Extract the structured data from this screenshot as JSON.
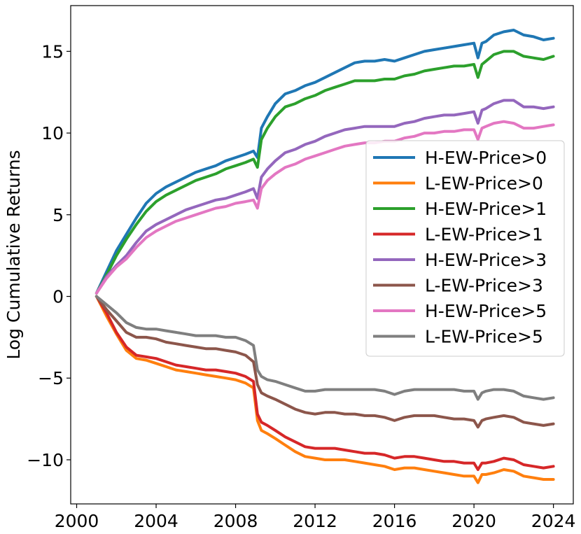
{
  "chart_data": {
    "type": "line",
    "title": "",
    "xlabel": "",
    "ylabel": "Log Cumulative Returns",
    "xlim": [
      1999.7,
      2025.0
    ],
    "ylim": [
      -12.7,
      17.8
    ],
    "x_ticks": [
      2000,
      2004,
      2008,
      2012,
      2016,
      2020,
      2024
    ],
    "x_tick_labels": [
      "2000",
      "2004",
      "2008",
      "2012",
      "2016",
      "2020",
      "2024"
    ],
    "y_ticks": [
      -10,
      -5,
      0,
      5,
      10,
      15
    ],
    "y_tick_labels": [
      "−10",
      "−5",
      "0",
      "5",
      "10",
      "15"
    ],
    "grid": false,
    "legend_position": "center-right",
    "x": [
      2001.0,
      2001.5,
      2002.0,
      2002.5,
      2003.0,
      2003.5,
      2004.0,
      2004.5,
      2005.0,
      2005.5,
      2006.0,
      2006.5,
      2007.0,
      2007.5,
      2008.0,
      2008.5,
      2008.9,
      2009.1,
      2009.3,
      2009.6,
      2010.0,
      2010.5,
      2011.0,
      2011.5,
      2012.0,
      2012.5,
      2013.0,
      2013.5,
      2014.0,
      2014.5,
      2015.0,
      2015.5,
      2016.0,
      2016.5,
      2017.0,
      2017.5,
      2018.0,
      2018.5,
      2019.0,
      2019.5,
      2020.0,
      2020.2,
      2020.4,
      2020.6,
      2021.0,
      2021.5,
      2022.0,
      2022.5,
      2023.0,
      2023.5,
      2024.0
    ],
    "series": [
      {
        "name": "H-EW-Price>0",
        "color": "#1f77b4",
        "values": [
          0.2,
          1.5,
          2.8,
          3.8,
          4.8,
          5.7,
          6.3,
          6.7,
          7.0,
          7.3,
          7.6,
          7.8,
          8.0,
          8.3,
          8.5,
          8.7,
          8.9,
          8.5,
          10.3,
          11.0,
          11.8,
          12.4,
          12.6,
          12.9,
          13.1,
          13.4,
          13.7,
          14.0,
          14.3,
          14.4,
          14.4,
          14.5,
          14.4,
          14.6,
          14.8,
          15.0,
          15.1,
          15.2,
          15.3,
          15.4,
          15.5,
          14.6,
          15.5,
          15.6,
          16.0,
          16.2,
          16.3,
          16.0,
          15.9,
          15.7,
          15.8
        ]
      },
      {
        "name": "L-EW-Price>0",
        "color": "#ff7f0e",
        "values": [
          0.0,
          -1.2,
          -2.3,
          -3.3,
          -3.8,
          -3.9,
          -4.1,
          -4.3,
          -4.5,
          -4.6,
          -4.7,
          -4.8,
          -4.9,
          -5.0,
          -5.1,
          -5.3,
          -5.6,
          -7.6,
          -8.2,
          -8.4,
          -8.7,
          -9.1,
          -9.5,
          -9.8,
          -9.9,
          -10.0,
          -10.0,
          -10.0,
          -10.1,
          -10.2,
          -10.3,
          -10.4,
          -10.6,
          -10.5,
          -10.5,
          -10.6,
          -10.7,
          -10.8,
          -10.9,
          -11.0,
          -11.0,
          -11.4,
          -10.9,
          -10.9,
          -10.8,
          -10.6,
          -10.7,
          -11.0,
          -11.1,
          -11.2,
          -11.2
        ]
      },
      {
        "name": "H-EW-Price>1",
        "color": "#2ca02c",
        "values": [
          0.2,
          1.3,
          2.5,
          3.5,
          4.4,
          5.2,
          5.8,
          6.2,
          6.5,
          6.8,
          7.1,
          7.3,
          7.5,
          7.8,
          8.0,
          8.2,
          8.4,
          7.9,
          9.6,
          10.3,
          11.0,
          11.6,
          11.8,
          12.1,
          12.3,
          12.6,
          12.8,
          13.0,
          13.2,
          13.2,
          13.2,
          13.3,
          13.3,
          13.5,
          13.6,
          13.8,
          13.9,
          14.0,
          14.1,
          14.1,
          14.2,
          13.4,
          14.2,
          14.4,
          14.8,
          15.0,
          15.0,
          14.7,
          14.6,
          14.5,
          14.7
        ]
      },
      {
        "name": "L-EW-Price>1",
        "color": "#d62728",
        "values": [
          0.0,
          -1.0,
          -2.2,
          -3.1,
          -3.6,
          -3.7,
          -3.8,
          -4.0,
          -4.2,
          -4.3,
          -4.4,
          -4.5,
          -4.5,
          -4.6,
          -4.7,
          -4.9,
          -5.2,
          -7.2,
          -7.7,
          -7.9,
          -8.2,
          -8.6,
          -8.9,
          -9.2,
          -9.3,
          -9.3,
          -9.3,
          -9.4,
          -9.5,
          -9.6,
          -9.6,
          -9.7,
          -9.9,
          -9.8,
          -9.8,
          -9.9,
          -10.0,
          -10.1,
          -10.1,
          -10.2,
          -10.2,
          -10.6,
          -10.2,
          -10.2,
          -10.1,
          -9.9,
          -10.0,
          -10.3,
          -10.4,
          -10.5,
          -10.4
        ]
      },
      {
        "name": "H-EW-Price>3",
        "color": "#9467bd",
        "values": [
          0.2,
          1.2,
          1.9,
          2.5,
          3.3,
          4.0,
          4.4,
          4.7,
          5.0,
          5.3,
          5.5,
          5.7,
          5.9,
          6.0,
          6.2,
          6.4,
          6.6,
          6.0,
          7.3,
          7.8,
          8.3,
          8.8,
          9.0,
          9.3,
          9.5,
          9.8,
          10.0,
          10.2,
          10.3,
          10.4,
          10.4,
          10.4,
          10.4,
          10.6,
          10.7,
          10.9,
          11.0,
          11.1,
          11.1,
          11.2,
          11.3,
          10.6,
          11.4,
          11.5,
          11.8,
          12.0,
          12.0,
          11.6,
          11.6,
          11.5,
          11.6
        ]
      },
      {
        "name": "L-EW-Price>3",
        "color": "#8c564b",
        "values": [
          0.0,
          -0.8,
          -1.5,
          -2.2,
          -2.5,
          -2.5,
          -2.6,
          -2.8,
          -2.9,
          -3.0,
          -3.1,
          -3.2,
          -3.2,
          -3.3,
          -3.4,
          -3.6,
          -4.0,
          -5.4,
          -5.9,
          -6.1,
          -6.3,
          -6.6,
          -6.9,
          -7.1,
          -7.2,
          -7.1,
          -7.1,
          -7.2,
          -7.2,
          -7.3,
          -7.3,
          -7.4,
          -7.6,
          -7.4,
          -7.3,
          -7.3,
          -7.3,
          -7.4,
          -7.5,
          -7.5,
          -7.6,
          -8.0,
          -7.6,
          -7.5,
          -7.4,
          -7.3,
          -7.4,
          -7.7,
          -7.8,
          -7.9,
          -7.8
        ]
      },
      {
        "name": "H-EW-Price>5",
        "color": "#e377c2",
        "values": [
          0.2,
          1.1,
          1.8,
          2.3,
          3.0,
          3.6,
          4.0,
          4.3,
          4.6,
          4.8,
          5.0,
          5.2,
          5.4,
          5.5,
          5.7,
          5.8,
          5.9,
          5.4,
          6.6,
          7.1,
          7.5,
          7.9,
          8.1,
          8.4,
          8.6,
          8.8,
          9.0,
          9.2,
          9.3,
          9.4,
          9.4,
          9.5,
          9.5,
          9.7,
          9.8,
          10.0,
          10.0,
          10.1,
          10.1,
          10.2,
          10.2,
          9.6,
          10.3,
          10.4,
          10.6,
          10.7,
          10.6,
          10.3,
          10.3,
          10.4,
          10.5
        ]
      },
      {
        "name": "L-EW-Price>5",
        "color": "#7f7f7f",
        "values": [
          0.0,
          -0.5,
          -1.0,
          -1.6,
          -1.9,
          -2.0,
          -2.0,
          -2.1,
          -2.2,
          -2.3,
          -2.4,
          -2.4,
          -2.4,
          -2.5,
          -2.5,
          -2.7,
          -3.0,
          -4.5,
          -4.9,
          -5.1,
          -5.2,
          -5.4,
          -5.6,
          -5.8,
          -5.8,
          -5.7,
          -5.7,
          -5.7,
          -5.7,
          -5.7,
          -5.7,
          -5.8,
          -6.0,
          -5.8,
          -5.7,
          -5.7,
          -5.7,
          -5.7,
          -5.7,
          -5.8,
          -5.8,
          -6.3,
          -5.9,
          -5.8,
          -5.7,
          -5.7,
          -5.8,
          -6.1,
          -6.2,
          -6.3,
          -6.2
        ]
      }
    ]
  }
}
